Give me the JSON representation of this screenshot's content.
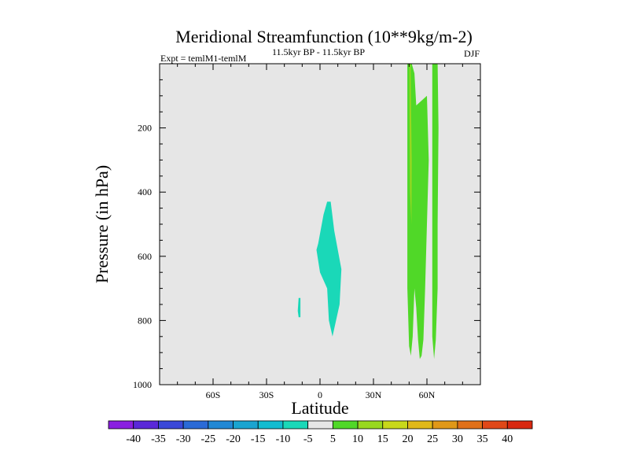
{
  "chart_data": {
    "type": "heatmap",
    "title": "Meridional Streamfunction (10**9kg/m-2)",
    "subtitle_left": "Expt = temlM1-temlM",
    "subtitle_center": "11.5kyr BP - 11.5kyr BP",
    "subtitle_right": "DJF",
    "xlabel": "Latitude",
    "ylabel": "Pressure (in hPa)",
    "xlim": [
      -90,
      90
    ],
    "ylim": [
      0,
      1000
    ],
    "x_ticks": [
      {
        "value": -60,
        "label": "60S"
      },
      {
        "value": -30,
        "label": "30S"
      },
      {
        "value": 0,
        "label": "0"
      },
      {
        "value": 30,
        "label": "30N"
      },
      {
        "value": 60,
        "label": "60N"
      }
    ],
    "y_ticks": [
      {
        "value": 200,
        "label": "200"
      },
      {
        "value": 400,
        "label": "400"
      },
      {
        "value": 600,
        "label": "600"
      },
      {
        "value": 800,
        "label": "800"
      },
      {
        "value": 1000,
        "label": "1000"
      }
    ],
    "colorbar": {
      "labels": [
        "-40",
        "-35",
        "-30",
        "-25",
        "-20",
        "-15",
        "-10",
        "-5",
        "5",
        "10",
        "15",
        "20",
        "25",
        "30",
        "35",
        "40"
      ],
      "colors": [
        "#8a1ee0",
        "#5a28d8",
        "#3a48d8",
        "#2a6ad6",
        "#2288d4",
        "#1aa4d0",
        "#12bcd0",
        "#1ad8b8",
        "#e6e6e6",
        "#50d828",
        "#98d820",
        "#c8d81a",
        "#e0b818",
        "#e09818",
        "#e07018",
        "#e04818",
        "#d82810"
      ]
    },
    "regions": [
      {
        "name": "negative-cell-tropics",
        "level": "-10 to -5",
        "color": "#1ad8b8",
        "outline": [
          [
            -1,
            560
          ],
          [
            2,
            470
          ],
          [
            4,
            430
          ],
          [
            6,
            430
          ],
          [
            8,
            520
          ],
          [
            12,
            640
          ],
          [
            11,
            750
          ],
          [
            9,
            800
          ],
          [
            7,
            850
          ],
          [
            5,
            800
          ],
          [
            4,
            700
          ],
          [
            0,
            650
          ],
          [
            -2,
            580
          ]
        ]
      },
      {
        "name": "negative-cell-small",
        "level": "-10 to -5",
        "color": "#1ad8b8",
        "outline": [
          [
            -12,
            730
          ],
          [
            -11,
            730
          ],
          [
            -11,
            790
          ],
          [
            -12,
            790
          ],
          [
            -12.5,
            770
          ]
        ]
      },
      {
        "name": "positive-cell-50N",
        "level": "5 to 10",
        "color": "#50d828",
        "outline": [
          [
            49,
            0
          ],
          [
            51.5,
            0
          ],
          [
            53,
            30
          ],
          [
            54,
            130
          ],
          [
            60,
            100
          ],
          [
            61,
            300
          ],
          [
            60,
            500
          ],
          [
            59,
            700
          ],
          [
            58,
            860
          ],
          [
            57,
            910
          ],
          [
            56,
            920
          ],
          [
            55,
            860
          ],
          [
            54,
            760
          ],
          [
            53,
            700
          ],
          [
            52,
            850
          ],
          [
            51,
            910
          ],
          [
            50,
            880
          ],
          [
            49,
            700
          ],
          [
            49,
            200
          ]
        ]
      },
      {
        "name": "positive-cell-50N-core",
        "level": "10 to 15",
        "color": "#98d820",
        "outline": [
          [
            50.2,
            0
          ],
          [
            50.8,
            0
          ],
          [
            51.5,
            300
          ],
          [
            51.3,
            500
          ],
          [
            50.5,
            400
          ],
          [
            50.2,
            150
          ]
        ]
      },
      {
        "name": "positive-cell-65N",
        "level": "5 to 10",
        "color": "#50d828",
        "outline": [
          [
            63,
            0
          ],
          [
            66,
            0
          ],
          [
            66.5,
            200
          ],
          [
            66,
            500
          ],
          [
            66,
            700
          ],
          [
            65,
            860
          ],
          [
            64,
            920
          ],
          [
            63,
            850
          ],
          [
            63,
            500
          ]
        ]
      }
    ]
  }
}
